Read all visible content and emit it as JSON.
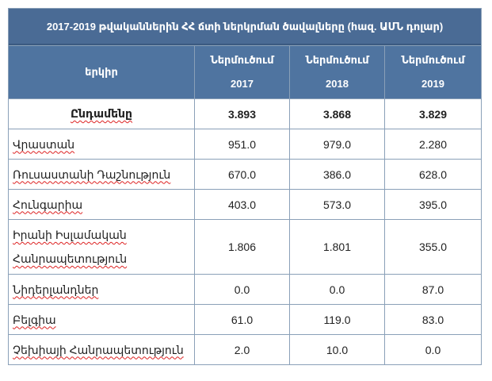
{
  "table": {
    "title": "2017-2019 թվականներին ՀՀ ճտի ներկրման ծավալները (հազ.  ԱՄՆ դոլար)",
    "header": {
      "country": "երկիր",
      "columns": [
        {
          "label": "Ներմուծում",
          "year": "2017"
        },
        {
          "label": "Ներմուծում",
          "year": "2018"
        },
        {
          "label": "Ներմուծում",
          "year": "2019"
        }
      ]
    },
    "total": {
      "label": "Ընդամենը",
      "values": [
        "3.893",
        "3.868",
        "3.829"
      ]
    },
    "rows": [
      {
        "country": "Վրաստան",
        "values": [
          "951.0",
          "979.0",
          "2.280"
        ]
      },
      {
        "country": "Ռուսաստանի Դաշնություն",
        "values": [
          "670.0",
          "386.0",
          "628.0"
        ]
      },
      {
        "country": "Հունգարիա",
        "values": [
          "403.0",
          "573.0",
          "395.0"
        ]
      },
      {
        "country_line1": "Իրանի Իսլամական",
        "country_line2": "Հանրապետություն",
        "values": [
          "1.806",
          "1.801",
          "355.0"
        ]
      },
      {
        "country": "Նիդերլանդներ",
        "values": [
          "0.0",
          "0.0",
          "87.0"
        ]
      },
      {
        "country": "Բելգիա",
        "values": [
          "61.0",
          "119.0",
          "83.0"
        ]
      },
      {
        "country": "Չեխիայի Հանրապետություն",
        "values": [
          "2.0",
          "10.0",
          "0.0"
        ]
      }
    ]
  }
}
